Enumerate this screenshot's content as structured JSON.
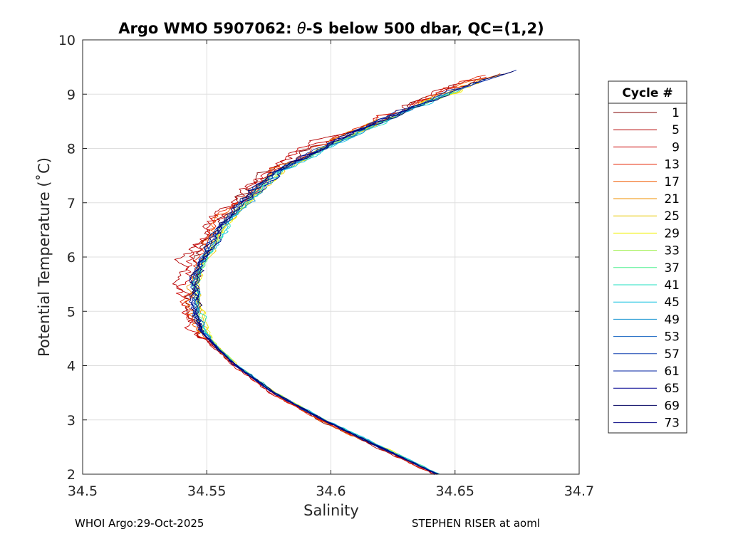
{
  "chart_data": {
    "type": "line",
    "title_prefix": "Argo WMO 5907062: ",
    "title_theta": "θ",
    "title_suffix": "-S below 500 dbar,  QC=(1,2)",
    "xlabel": "Salinity",
    "ylabel": "Potential Temperature (˚C)",
    "xlim": [
      34.5,
      34.7
    ],
    "ylim": [
      2,
      10
    ],
    "xticks": [
      34.5,
      34.55,
      34.6,
      34.65,
      34.7
    ],
    "xtick_labels": [
      "34.5",
      "34.55",
      "34.6",
      "34.65",
      "34.7"
    ],
    "yticks": [
      2,
      3,
      4,
      5,
      6,
      7,
      8,
      9,
      10
    ],
    "ytick_labels": [
      "2",
      "3",
      "4",
      "5",
      "6",
      "7",
      "8",
      "9",
      "10"
    ],
    "grid": true,
    "legend": {
      "title": "Cycle #",
      "position": "right-outside",
      "entries": [
        "1",
        "5",
        "9",
        "13",
        "17",
        "21",
        "25",
        "29",
        "33",
        "37",
        "41",
        "45",
        "49",
        "53",
        "57",
        "61",
        "65",
        "69",
        "73"
      ],
      "colors": [
        "#800000",
        "#b30000",
        "#cc0000",
        "#e62200",
        "#f05a00",
        "#f09000",
        "#e8c800",
        "#f0f000",
        "#a0f050",
        "#50f090",
        "#20e0c0",
        "#10c0e0",
        "#1090d0",
        "#1060c0",
        "#1040b0",
        "#0020a0",
        "#000090",
        "#000060",
        "#000080"
      ]
    },
    "profile_shape": {
      "theta": [
        2.0,
        2.5,
        3.0,
        3.5,
        4.0,
        4.3,
        4.6,
        4.8,
        5.0,
        5.2,
        5.5,
        5.8,
        6.0,
        6.3,
        6.6,
        7.0,
        7.3,
        7.6,
        8.0,
        8.3,
        8.6,
        8.9,
        9.2,
        9.5
      ],
      "salinity": [
        34.643,
        34.62,
        34.597,
        34.577,
        34.562,
        34.555,
        34.549,
        34.547,
        34.546,
        34.5455,
        34.545,
        34.547,
        34.549,
        34.553,
        34.557,
        34.565,
        34.572,
        34.58,
        34.597,
        34.61,
        34.625,
        34.641,
        34.658,
        34.678
      ]
    },
    "cycles": [
      {
        "name": "1",
        "offset": -0.003,
        "noise": 0.004
      },
      {
        "name": "5",
        "offset": -0.0045,
        "noise": 0.005
      },
      {
        "name": "9",
        "offset": -0.0035,
        "noise": 0.0045
      },
      {
        "name": "13",
        "offset": -0.0025,
        "noise": 0.004
      },
      {
        "name": "17",
        "offset": -0.002,
        "noise": 0.0035
      },
      {
        "name": "21",
        "offset": -0.001,
        "noise": 0.0025
      },
      {
        "name": "25",
        "offset": 0.001,
        "noise": 0.002
      },
      {
        "name": "29",
        "offset": 0.0015,
        "noise": 0.002
      },
      {
        "name": "33",
        "offset": 0.001,
        "noise": 0.0018
      },
      {
        "name": "37",
        "offset": 0.0005,
        "noise": 0.0018
      },
      {
        "name": "41",
        "offset": 0.001,
        "noise": 0.002
      },
      {
        "name": "45",
        "offset": 0.0015,
        "noise": 0.0022
      },
      {
        "name": "49",
        "offset": 0.0005,
        "noise": 0.002
      },
      {
        "name": "53",
        "offset": 0.0,
        "noise": 0.0022
      },
      {
        "name": "57",
        "offset": -0.0005,
        "noise": 0.0024
      },
      {
        "name": "61",
        "offset": -0.001,
        "noise": 0.0026
      },
      {
        "name": "65",
        "offset": -0.0005,
        "noise": 0.0024
      },
      {
        "name": "69",
        "offset": 0.0,
        "noise": 0.0024
      },
      {
        "name": "73",
        "offset": -0.0008,
        "noise": 0.0026
      }
    ]
  },
  "footer": {
    "left": "WHOI Argo:29-Oct-2025",
    "right": "STEPHEN RISER at aoml"
  }
}
